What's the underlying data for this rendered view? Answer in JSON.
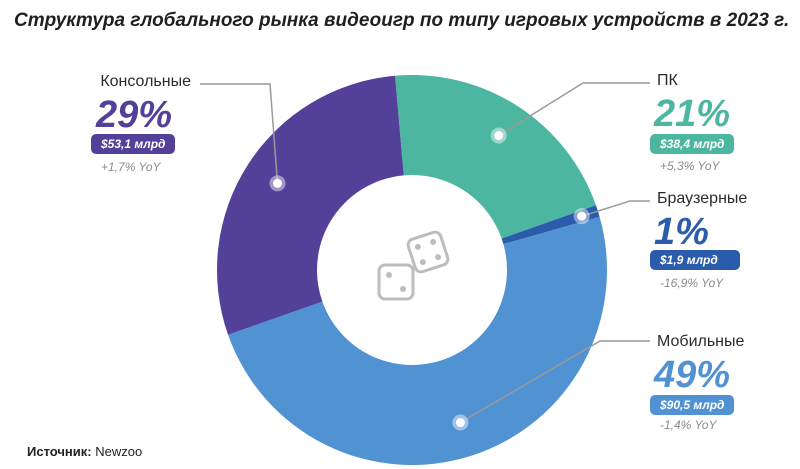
{
  "title": "Структура глобального рынка видеоигр по типу игровых устройств в 2023 г.",
  "source": {
    "label": "Источник:",
    "value": "Newzoo"
  },
  "colors": {
    "console": "#524099",
    "pc": "#4db6a1",
    "browser": "#2a5cab",
    "mobile": "#5192d3"
  },
  "center_icon": "dice-icon",
  "chart_data": {
    "type": "pie",
    "title": "Структура глобального рынка видеоигр по типу игровых устройств в 2023 г.",
    "donut": true,
    "slices": [
      {
        "key": "pc",
        "label": "ПК",
        "percent": "21%",
        "value": 21,
        "amount": "$38,4 млрд",
        "amount_value": 38.4,
        "yoy": "+5,3% YoY"
      },
      {
        "key": "browser",
        "label": "Браузерные",
        "percent": "1%",
        "value": 1,
        "amount": "$1,9 млрд",
        "amount_value": 1.9,
        "yoy": "-16,9% YoY"
      },
      {
        "key": "mobile",
        "label": "Мобильные",
        "percent": "49%",
        "value": 49,
        "amount": "$90,5 млрд",
        "amount_value": 90.5,
        "yoy": "-1,4% YoY"
      },
      {
        "key": "console",
        "label": "Консольные",
        "percent": "29%",
        "value": 29,
        "amount": "$53,1 млрд",
        "amount_value": 53.1,
        "yoy": "+1,7% YoY"
      }
    ]
  }
}
